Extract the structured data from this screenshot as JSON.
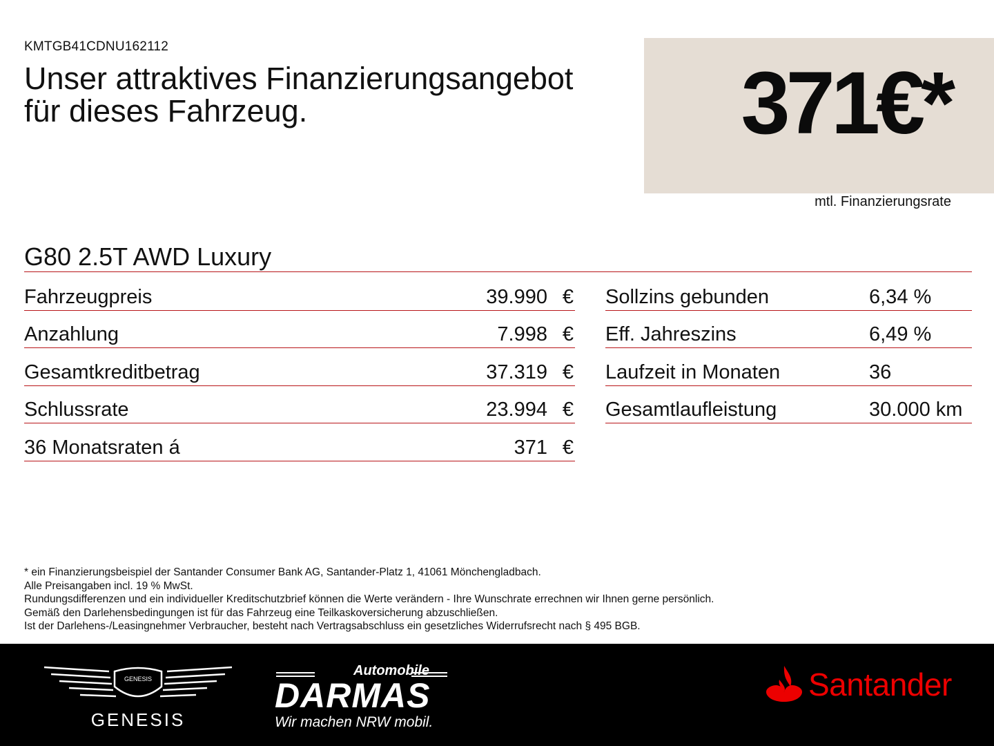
{
  "vin": "KMTGB41CDNU162112",
  "headline": {
    "line1": "Unser attraktives Finanzierungsangebot",
    "line2": "für dieses Fahrzeug."
  },
  "price": {
    "amount": "371€*",
    "label": "mtl. Finanzierungsrate"
  },
  "model": "G80 2.5T AWD Luxury",
  "left_table": [
    {
      "label": "Fahrzeugpreis",
      "value": "39.990",
      "currency": "€"
    },
    {
      "label": "Anzahlung",
      "value": "7.998",
      "currency": "€"
    },
    {
      "label": "Gesamtkreditbetrag",
      "value": "37.319",
      "currency": "€"
    },
    {
      "label": "Schlussrate",
      "value": "23.994",
      "currency": "€"
    },
    {
      "label": "36 Monatsraten á",
      "value": "371",
      "currency": "€"
    }
  ],
  "right_table": [
    {
      "label": "Sollzins gebunden",
      "value": "6,34 %"
    },
    {
      "label": "Eff. Jahreszins",
      "value": "6,49 %"
    },
    {
      "label": "Laufzeit in Monaten",
      "value": "36"
    },
    {
      "label": "Gesamtlaufleistung",
      "value": "30.000 km"
    }
  ],
  "footnotes": [
    "* ein Finanzierungsbeispiel der Santander Consumer Bank AG, Santander-Platz 1, 41061 Mönchengladbach.",
    "Alle Preisangaben incl. 19 % MwSt.",
    "Rundungsdifferenzen und ein individueller Kreditschutzbrief können die Werte verändern - Ihre Wunschrate errechnen wir Ihnen gerne persönlich.",
    "Gemäß den Darlehensbedingungen ist für das Fahrzeug eine Teilkaskoversicherung abzuschließen.",
    "Ist der Darlehens-/Leasingnehmer Verbraucher, besteht nach Vertragsabschluss ein gesetzliches Widerrufsrecht nach § 495 BGB."
  ],
  "footer": {
    "genesis_badge": "GENESIS",
    "genesis_name": "GENESIS",
    "dealer_top": "Automobile",
    "dealer_name": "DARMAS",
    "dealer_slogan": "Wir machen NRW mobil.",
    "bank_name": "Santander"
  },
  "colors": {
    "accent_line": "#b81418",
    "price_box_bg": "#e5ddd4",
    "footer_bg": "#000000",
    "santander_red": "#ec0000"
  },
  "icons": [
    "genesis-logo-icon",
    "santander-flame-icon"
  ]
}
